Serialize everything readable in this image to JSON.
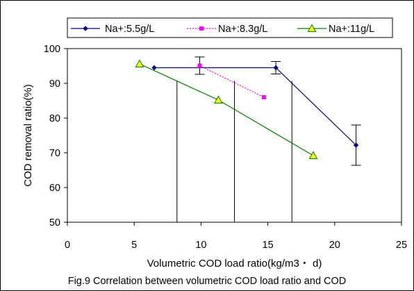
{
  "chart_data": {
    "type": "line",
    "xlabel": "Volumetric COD load ratio(kg/m3・ d)",
    "ylabel": "COD removal ratio(%)",
    "caption": "Fig.9 Correlation between volumetric COD load ratio and COD",
    "xlim": [
      0,
      25
    ],
    "ylim": [
      50,
      100
    ],
    "x_ticks": [
      0,
      5,
      10,
      15,
      20,
      25
    ],
    "y_ticks": [
      50,
      60,
      70,
      80,
      90,
      100
    ],
    "x_tick_labels": [
      "0",
      "5",
      "10",
      "15",
      "20",
      "25"
    ],
    "y_tick_labels": [
      "50",
      "60",
      "70",
      "80",
      "90",
      "100"
    ],
    "grid": false,
    "legend_position": "top",
    "series": [
      {
        "name": "Na+:5.5g/L",
        "color": "#000080",
        "marker": "diamond",
        "line_style": "solid",
        "x": [
          6.5,
          15.6,
          21.6
        ],
        "y": [
          94.5,
          94.5,
          72.2
        ],
        "error": [
          null,
          1.8,
          5.8
        ]
      },
      {
        "name": "Na+:8.3g/L",
        "color": "#ff00ff",
        "marker": "square",
        "line_style": "dotted",
        "x": [
          9.9,
          14.7
        ],
        "y": [
          95.1,
          86.0
        ],
        "error": [
          2.5,
          null
        ]
      },
      {
        "name": "Na+:11g/L",
        "color": "#008000",
        "marker": "triangle",
        "marker_fill": "#ffff00",
        "line_style": "solid",
        "x": [
          5.4,
          11.3,
          18.4
        ],
        "y": [
          95.6,
          85.2,
          69.2
        ],
        "error": [
          null,
          null,
          null
        ]
      }
    ],
    "reference_lines": [
      {
        "x": 8.2,
        "y": 90.7
      },
      {
        "x": 12.5,
        "y": 90.7
      },
      {
        "x": 16.8,
        "y": 90.7
      }
    ]
  }
}
